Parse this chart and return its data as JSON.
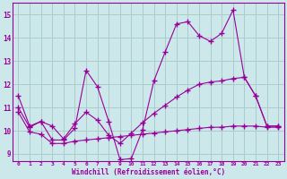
{
  "xlabel": "Windchill (Refroidissement éolien,°C)",
  "background_color": "#cce8ea",
  "grid_color": "#aacccc",
  "line_color": "#990099",
  "xlim": [
    -0.5,
    23.5
  ],
  "ylim": [
    8.7,
    15.5
  ],
  "yticks": [
    9,
    10,
    11,
    12,
    13,
    14,
    15
  ],
  "xticks": [
    0,
    1,
    2,
    3,
    4,
    5,
    6,
    7,
    8,
    9,
    10,
    11,
    12,
    13,
    14,
    15,
    16,
    17,
    18,
    19,
    20,
    21,
    22,
    23
  ],
  "curve1_x": [
    0,
    1,
    2,
    3,
    4,
    5,
    6,
    7,
    8,
    9,
    10,
    11,
    12,
    13,
    14,
    15,
    16,
    17,
    18,
    19,
    20,
    21,
    22,
    23
  ],
  "curve1_y": [
    11.5,
    10.2,
    10.4,
    9.6,
    9.6,
    10.1,
    12.6,
    11.9,
    10.4,
    8.75,
    8.8,
    10.05,
    12.15,
    13.4,
    14.6,
    14.7,
    14.1,
    13.85,
    14.2,
    15.2,
    12.3,
    11.5,
    10.2,
    10.2
  ],
  "curve2_x": [
    0,
    1,
    2,
    3,
    4,
    5,
    6,
    7,
    8,
    9,
    10,
    11,
    12,
    13,
    14,
    15,
    16,
    17,
    18,
    19,
    20,
    21,
    22,
    23
  ],
  "curve2_y": [
    11.0,
    10.15,
    10.4,
    10.2,
    9.65,
    10.3,
    10.8,
    10.45,
    9.8,
    9.45,
    9.9,
    10.35,
    10.75,
    11.1,
    11.45,
    11.75,
    12.0,
    12.1,
    12.15,
    12.25,
    12.3,
    11.5,
    10.2,
    10.2
  ],
  "curve3_x": [
    0,
    1,
    2,
    3,
    4,
    5,
    6,
    7,
    8,
    9,
    10,
    11,
    12,
    13,
    14,
    15,
    16,
    17,
    18,
    19,
    20,
    21,
    22,
    23
  ],
  "curve3_y": [
    10.8,
    9.95,
    9.85,
    9.45,
    9.45,
    9.55,
    9.6,
    9.65,
    9.7,
    9.75,
    9.8,
    9.85,
    9.9,
    9.95,
    10.0,
    10.05,
    10.1,
    10.15,
    10.15,
    10.2,
    10.2,
    10.2,
    10.15,
    10.15
  ]
}
